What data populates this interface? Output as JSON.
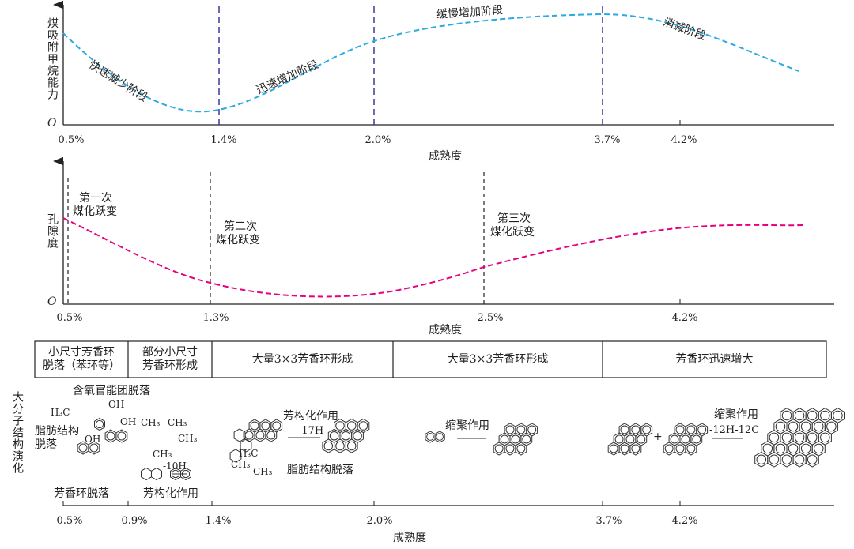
{
  "colors": {
    "adsorption_curve": "#29aae1",
    "porosity_curve": "#e6007e",
    "stage_lines": "#3a3a9a",
    "axis": "#222222"
  },
  "panel1": {
    "ylabel": "煤吸附甲烷能力",
    "origin": "O",
    "xlabel": "成熟度",
    "ticks": [
      "0.5%",
      "1.4%",
      "2.0%",
      "3.7%",
      "4.2%"
    ],
    "stages": [
      "快速减少阶段",
      "迅速增加阶段",
      "缓慢增加阶段",
      "消减阶段"
    ]
  },
  "panel2": {
    "ylabel": "孔隙度",
    "origin": "O",
    "xlabel": "成熟度",
    "ticks": [
      "0.5%",
      "1.3%",
      "2.5%",
      "4.2%"
    ],
    "jumps": [
      {
        "l1": "第一次",
        "l2": "煤化跃变"
      },
      {
        "l1": "第二次",
        "l2": "煤化跃变"
      },
      {
        "l1": "第三次",
        "l2": "煤化跃变"
      }
    ]
  },
  "panel3": {
    "ylabel": "大分子结构演化",
    "xlabel": "成熟度",
    "table": [
      {
        "l1": "小尺寸芳香环",
        "l2": "脱落（苯环等）"
      },
      {
        "l1": "部分小尺寸",
        "l2": "芳香环形成"
      },
      {
        "l1": "大量3×3芳香环形成",
        "l2": ""
      },
      {
        "l1": "大量3×3芳香环形成",
        "l2": ""
      },
      {
        "l1": "芳香环迅速增大",
        "l2": ""
      }
    ],
    "annotations": {
      "oxygen": "含氧官能团脱落",
      "h3c": "H₃C",
      "oh1": "OH",
      "oh2": "OH",
      "oh3": "OH",
      "aliphatic1": "脂肪结构",
      "aliphatic2": "脱落",
      "ch3a": "CH₃",
      "ch3b": "CH₃",
      "ch3c": "CH₃",
      "ch3d": "CH₃",
      "minus10h": "-10H",
      "ring_loss": "芳香环脱落",
      "arom1": "芳构化作用",
      "arom2": "芳构化作用",
      "minus17h": "-17H",
      "h3c2": "H₃C",
      "ch3e": "CH₃",
      "ch3f": "CH₃",
      "aliphatic_loss": "脂肪结构脱落",
      "cond1": "缩聚作用",
      "cond2": "缩聚作用",
      "minus12": "-12H-12C",
      "plus": "+"
    },
    "ticks": [
      "0.5%",
      "0.9%",
      "1.4%",
      "2.0%",
      "3.7%",
      "4.2%"
    ]
  }
}
